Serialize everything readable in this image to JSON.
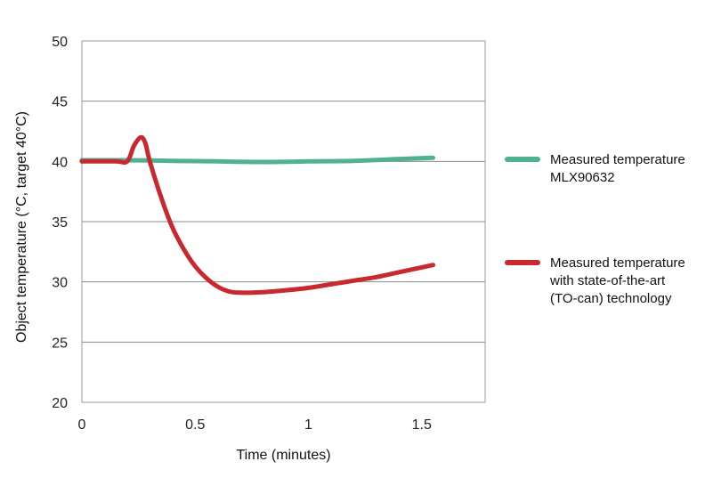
{
  "chart_data": {
    "type": "line",
    "title": "",
    "xlabel": "Time (minutes)",
    "ylabel": "Object temperature (°C, target 40°C)",
    "xlim": [
      0,
      1.78
    ],
    "ylim": [
      20,
      50
    ],
    "xticks": [
      0,
      0.5,
      1,
      1.5
    ],
    "xtick_labels": [
      "0",
      "0.5",
      "1",
      "1.5"
    ],
    "yticks": [
      20,
      25,
      30,
      35,
      40,
      45,
      50
    ],
    "ytick_labels": [
      "20",
      "25",
      "30",
      "35",
      "40",
      "45",
      "50"
    ],
    "grid": "horizontal",
    "legend_position": "right",
    "series": [
      {
        "name": "Measured temperature MLX90632",
        "legend_lines": [
          "Measured temperature",
          "MLX90632"
        ],
        "color": "#4fb093",
        "x": [
          0,
          0.2,
          0.4,
          0.6,
          0.8,
          1.0,
          1.2,
          1.4,
          1.55
        ],
        "y": [
          40.1,
          40.1,
          40.05,
          40.0,
          39.95,
          40.0,
          40.05,
          40.2,
          40.3
        ]
      },
      {
        "name": "Measured temperature with state-of-the-art (TO-can) technology",
        "legend_lines": [
          "Measured temperature",
          "with state-of-the-art",
          "(TO-can) technology"
        ],
        "color": "#c8282e",
        "x": [
          0,
          0.15,
          0.2,
          0.23,
          0.26,
          0.28,
          0.3,
          0.35,
          0.4,
          0.45,
          0.5,
          0.55,
          0.6,
          0.65,
          0.7,
          0.8,
          0.9,
          1.0,
          1.1,
          1.2,
          1.3,
          1.4,
          1.5,
          1.55
        ],
        "y": [
          40.0,
          40.0,
          40.0,
          41.3,
          42.0,
          41.5,
          40.0,
          37.0,
          34.5,
          32.7,
          31.3,
          30.3,
          29.6,
          29.2,
          29.1,
          29.15,
          29.3,
          29.5,
          29.8,
          30.1,
          30.4,
          30.8,
          31.2,
          31.4
        ]
      }
    ]
  }
}
